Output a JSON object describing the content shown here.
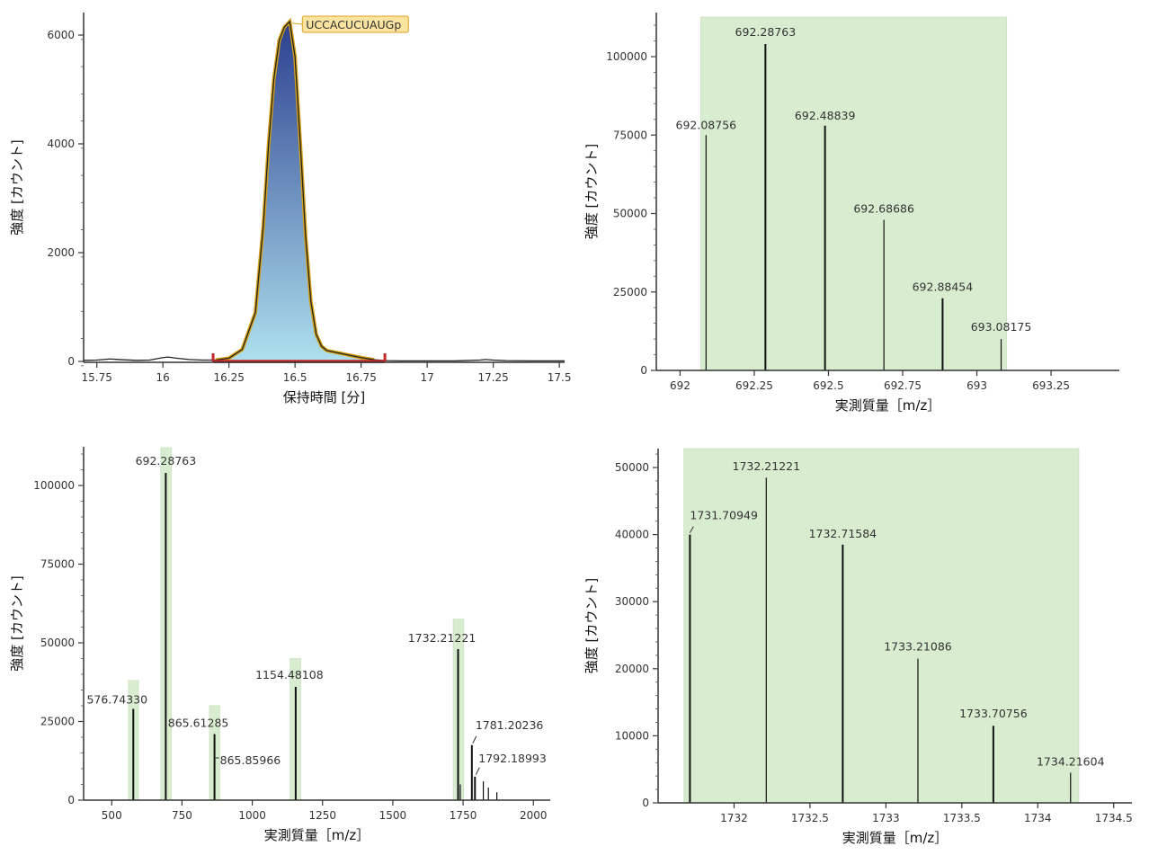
{
  "chart_data": [
    {
      "id": "chromatogram",
      "type": "area",
      "xlabel": "保持時間 [分]",
      "ylabel": "強度 [カウント]",
      "xlim": [
        15.7,
        17.52
      ],
      "ylim": [
        -80,
        6400
      ],
      "xticks": [
        "15.75",
        "16",
        "16.25",
        "16.5",
        "16.75",
        "17",
        "17.25",
        "17.5"
      ],
      "yticks": [
        "0",
        "2000",
        "4000",
        "6000"
      ],
      "annotation": "UCCACUCUAUGp",
      "integration_range": [
        16.19,
        16.84
      ],
      "colors": {
        "peak_top": "#2b3f8f",
        "peak_bottom": "#aee0ee",
        "outline": "#d4a017",
        "baseline_bar": "#c0282d",
        "trace": "#222222",
        "label_bg": "#fbe3a0",
        "label_border": "#e0a020"
      },
      "series": [
        {
          "x": [
            15.7,
            15.75,
            15.8,
            15.85,
            15.9,
            15.95,
            16.0,
            16.02,
            16.05,
            16.1,
            16.15,
            16.2,
            16.25,
            16.3,
            16.35,
            16.38,
            16.4,
            16.42,
            16.44,
            16.46,
            16.47,
            16.48,
            16.5,
            16.52,
            16.54,
            16.56,
            16.58,
            16.6,
            16.62,
            16.65,
            16.7,
            16.75,
            16.8,
            16.85,
            16.9,
            17.0,
            17.1,
            17.2,
            17.22,
            17.25,
            17.3,
            17.4,
            17.52
          ],
          "y": [
            20,
            25,
            45,
            30,
            20,
            25,
            70,
            80,
            60,
            35,
            25,
            25,
            60,
            220,
            900,
            2500,
            4000,
            5200,
            5900,
            6150,
            6200,
            6250,
            5600,
            4000,
            2300,
            1100,
            500,
            280,
            200,
            170,
            120,
            70,
            30,
            15,
            10,
            10,
            10,
            25,
            35,
            25,
            15,
            10,
            10
          ]
        }
      ]
    },
    {
      "id": "isotope-spectrum-692",
      "type": "bar",
      "xlabel": "実測質量［m/z］",
      "ylabel": "強度 [カウント]",
      "xlim": [
        691.92,
        693.48
      ],
      "ylim": [
        0,
        112000
      ],
      "xticks": [
        "692",
        "692.25",
        "692.5",
        "692.75",
        "693",
        "693.25"
      ],
      "yticks": [
        "0",
        "25000",
        "50000",
        "75000",
        "100000"
      ],
      "highlight_range": [
        692.07,
        693.1
      ],
      "peaks": [
        {
          "mz": 692.08756,
          "intensity": 75000,
          "label": "692.08756"
        },
        {
          "mz": 692.28763,
          "intensity": 104000,
          "label": "692.28763"
        },
        {
          "mz": 692.48839,
          "intensity": 78000,
          "label": "692.48839"
        },
        {
          "mz": 692.68686,
          "intensity": 48000,
          "label": "692.68686"
        },
        {
          "mz": 692.88454,
          "intensity": 23000,
          "label": "692.88454"
        },
        {
          "mz": 693.08175,
          "intensity": 10000,
          "label": "693.08175"
        }
      ]
    },
    {
      "id": "full-spectrum",
      "type": "bar",
      "xlabel": "実測質量［m/z］",
      "ylabel": "強度 [カウント]",
      "xlim": [
        400,
        2060
      ],
      "ylim": [
        0,
        112000
      ],
      "xticks": [
        "500",
        "750",
        "1000",
        "1250",
        "1500",
        "1750",
        "2000"
      ],
      "yticks": [
        "0",
        "25000",
        "50000",
        "75000",
        "100000"
      ],
      "highlights": [
        {
          "from": 560,
          "to": 595,
          "top": 38000
        },
        {
          "from": 675,
          "to": 712,
          "top": 112000
        },
        {
          "from": 848,
          "to": 884,
          "top": 30000
        },
        {
          "from": 1135,
          "to": 1172,
          "top": 45000
        },
        {
          "from": 1715,
          "to": 1752,
          "top": 57500
        }
      ],
      "peaks": [
        {
          "mz": 576.7433,
          "intensity": 29000,
          "label": "576.74330"
        },
        {
          "mz": 692.28763,
          "intensity": 104000,
          "label": "692.28763"
        },
        {
          "mz": 865.61285,
          "intensity": 21000,
          "label": "865.61285"
        },
        {
          "mz": 865.85966,
          "intensity": 14000,
          "label": "865.85966"
        },
        {
          "mz": 1154.48108,
          "intensity": 36000,
          "label": "1154.48108"
        },
        {
          "mz": 1732.21221,
          "intensity": 48000,
          "label": "1732.21221"
        },
        {
          "mz": 1781.20236,
          "intensity": 17500,
          "label": "1781.20236"
        },
        {
          "mz": 1792.18993,
          "intensity": 7500,
          "label": "1792.18993"
        },
        {
          "mz": 1740,
          "intensity": 5000,
          "label": ""
        },
        {
          "mz": 1822,
          "intensity": 6000,
          "label": ""
        },
        {
          "mz": 1840,
          "intensity": 4000,
          "label": ""
        },
        {
          "mz": 1870,
          "intensity": 2500,
          "label": ""
        }
      ]
    },
    {
      "id": "isotope-spectrum-1732",
      "type": "bar",
      "xlabel": "実測質量［m/z］",
      "ylabel": "強度 [カウント]",
      "xlim": [
        1731.5,
        1734.62
      ],
      "ylim": [
        0,
        52800
      ],
      "xticks": [
        "1732",
        "1732.5",
        "1733",
        "1733.5",
        "1734",
        "1734.5"
      ],
      "yticks": [
        "0",
        "10000",
        "20000",
        "30000",
        "40000",
        "50000"
      ],
      "highlight_range": [
        1731.67,
        1734.27
      ],
      "peaks": [
        {
          "mz": 1731.70949,
          "intensity": 40000,
          "label": "1731.70949"
        },
        {
          "mz": 1732.21221,
          "intensity": 48500,
          "label": "1732.21221"
        },
        {
          "mz": 1732.71584,
          "intensity": 38500,
          "label": "1732.71584"
        },
        {
          "mz": 1733.21086,
          "intensity": 21500,
          "label": "1733.21086"
        },
        {
          "mz": 1733.70756,
          "intensity": 11500,
          "label": "1733.70756"
        },
        {
          "mz": 1734.21604,
          "intensity": 4500,
          "label": "1734.21604"
        }
      ]
    }
  ]
}
